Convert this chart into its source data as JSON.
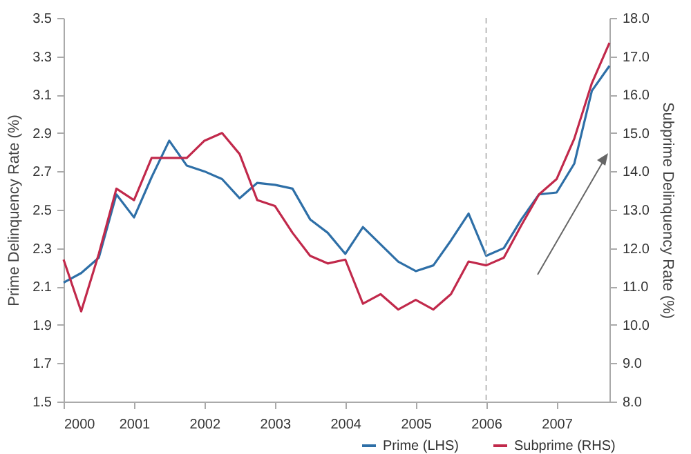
{
  "chart_data": {
    "type": "line",
    "xlabel": null,
    "ylabel": "Prime Delinquency Rate (%)",
    "y2label": "Subprime Delinquency Rate (%)",
    "x": [
      2000,
      2000.25,
      2000.5,
      2000.75,
      2001,
      2001.25,
      2001.5,
      2001.75,
      2002,
      2002.25,
      2002.5,
      2002.75,
      2003,
      2003.25,
      2003.5,
      2003.75,
      2004,
      2004.25,
      2004.5,
      2004.75,
      2005,
      2005.25,
      2005.5,
      2005.75,
      2006,
      2006.25,
      2006.5,
      2006.75,
      2007,
      2007.25,
      2007.5,
      2007.75
    ],
    "series": [
      {
        "name": "Prime (LHS)",
        "color": "#2e6fa7",
        "values": [
          2.12,
          2.17,
          2.25,
          2.58,
          2.46,
          2.67,
          2.86,
          2.73,
          2.7,
          2.66,
          2.56,
          2.64,
          2.63,
          2.61,
          2.45,
          2.38,
          2.27,
          2.41,
          2.32,
          2.23,
          2.18,
          2.21,
          2.34,
          2.48,
          2.26,
          2.3,
          2.45,
          2.58,
          2.59,
          2.74,
          3.12,
          3.25
        ]
      },
      {
        "name": "Subprime (RHS)",
        "color": "#c1294b",
        "axis": "y2",
        "values": [
          11.7,
          10.35,
          11.85,
          13.55,
          13.25,
          14.35,
          14.35,
          14.35,
          14.8,
          15.0,
          14.45,
          13.25,
          13.1,
          12.4,
          11.8,
          11.6,
          11.7,
          10.55,
          10.8,
          10.4,
          10.65,
          10.4,
          10.8,
          11.65,
          11.55,
          11.75,
          12.6,
          13.4,
          13.8,
          14.85,
          16.3,
          17.35
        ]
      }
    ],
    "xlim": [
      2000,
      2007.75
    ],
    "xticks": [
      2000,
      2001,
      2002,
      2003,
      2004,
      2005,
      2006,
      2007
    ],
    "ylim": [
      1.5,
      3.5
    ],
    "yticks": [
      {
        "value": 1.5,
        "label": "1.5"
      },
      {
        "value": 1.7,
        "label": "1.7"
      },
      {
        "value": 1.9,
        "label": "1.9"
      },
      {
        "value": 2.1,
        "label": "2.1"
      },
      {
        "value": 2.3,
        "label": "2.3"
      },
      {
        "value": 2.5,
        "label": "2.5"
      },
      {
        "value": 2.7,
        "label": "2.7"
      },
      {
        "value": 2.9,
        "label": "2.9"
      },
      {
        "value": 3.1,
        "label": "3.1"
      },
      {
        "value": 3.3,
        "label": "3.3"
      },
      {
        "value": 3.5,
        "label": "3.5"
      }
    ],
    "y2lim": [
      8,
      18
    ],
    "y2ticks": [
      {
        "value": 8,
        "label": "8.0"
      },
      {
        "value": 9,
        "label": "9.0"
      },
      {
        "value": 10,
        "label": "10.0"
      },
      {
        "value": 11,
        "label": "11.0"
      },
      {
        "value": 12,
        "label": "12.0"
      },
      {
        "value": 13,
        "label": "13.0"
      },
      {
        "value": 14,
        "label": "14.0"
      },
      {
        "value": 15,
        "label": "15.0"
      },
      {
        "value": 16,
        "label": "16.0"
      },
      {
        "value": 17,
        "label": "17.0"
      },
      {
        "value": 18,
        "label": "18.0"
      }
    ],
    "ref_lines": [
      {
        "axis": "x",
        "value": 2006,
        "label": null,
        "color": "#bbbbbb",
        "line_style": "dashed"
      }
    ],
    "grid": false,
    "legend": "bottom right",
    "marker": "none",
    "line_style": "solid"
  }
}
